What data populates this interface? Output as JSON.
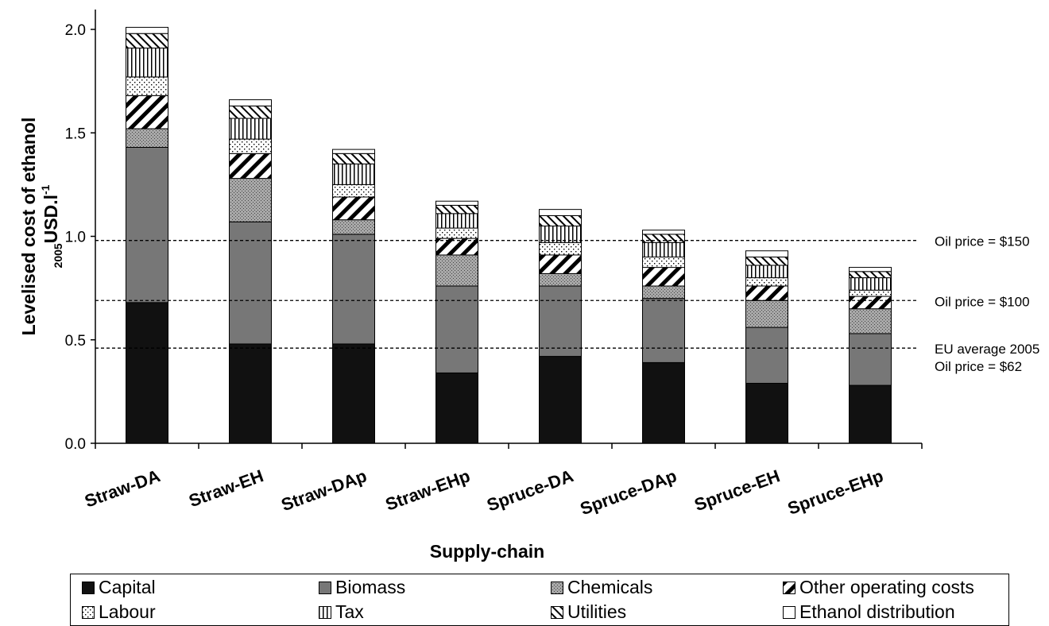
{
  "chart_data": {
    "type": "bar",
    "stacked": true,
    "xlabel": "Supply-chain",
    "ylabel_main": "Levelised cost of ethanol",
    "ylabel_sub": "2005",
    "ylabel_unit": "USD.l",
    "ylabel_sup": "-1",
    "ylim": [
      0,
      2.0
    ],
    "yticks": [
      "0.0",
      "0.5",
      "1.0",
      "1.5",
      "2.0"
    ],
    "grid": false,
    "legend_position": "bottom",
    "categories": [
      "Straw-DA",
      "Straw-EH",
      "Straw-DAp",
      "Straw-EHp",
      "Spruce-DA",
      "Spruce-DAp",
      "Spruce-EH",
      "Spruce-EHp"
    ],
    "series": [
      {
        "name": "Capital",
        "pattern": "solid-black",
        "values": [
          0.68,
          0.48,
          0.48,
          0.34,
          0.42,
          0.39,
          0.29,
          0.28
        ]
      },
      {
        "name": "Biomass",
        "pattern": "solid-gray",
        "values": [
          0.75,
          0.59,
          0.53,
          0.42,
          0.34,
          0.31,
          0.27,
          0.25
        ]
      },
      {
        "name": "Chemicals",
        "pattern": "gray-dotted",
        "values": [
          0.09,
          0.21,
          0.07,
          0.15,
          0.06,
          0.06,
          0.13,
          0.12
        ]
      },
      {
        "name": "Other operating costs",
        "pattern": "diagonal-thick",
        "values": [
          0.16,
          0.12,
          0.11,
          0.08,
          0.09,
          0.09,
          0.07,
          0.06
        ]
      },
      {
        "name": "Labour",
        "pattern": "dots",
        "values": [
          0.09,
          0.07,
          0.06,
          0.05,
          0.06,
          0.05,
          0.04,
          0.03
        ]
      },
      {
        "name": "Tax",
        "pattern": "vertical-lines",
        "values": [
          0.14,
          0.1,
          0.1,
          0.07,
          0.08,
          0.07,
          0.06,
          0.06
        ]
      },
      {
        "name": "Utilities",
        "pattern": "backslash",
        "values": [
          0.07,
          0.06,
          0.05,
          0.04,
          0.05,
          0.04,
          0.04,
          0.03
        ]
      },
      {
        "name": "Ethanol distribution",
        "pattern": "white",
        "values": [
          0.03,
          0.03,
          0.02,
          0.02,
          0.03,
          0.02,
          0.03,
          0.02
        ]
      }
    ],
    "reference_lines": [
      {
        "value": 0.98,
        "labels": [
          "Oil price = $150"
        ]
      },
      {
        "value": 0.69,
        "labels": [
          "Oil price = $100"
        ]
      },
      {
        "value": 0.46,
        "labels": [
          "EU average 2005",
          "Oil price = $62"
        ]
      }
    ]
  }
}
